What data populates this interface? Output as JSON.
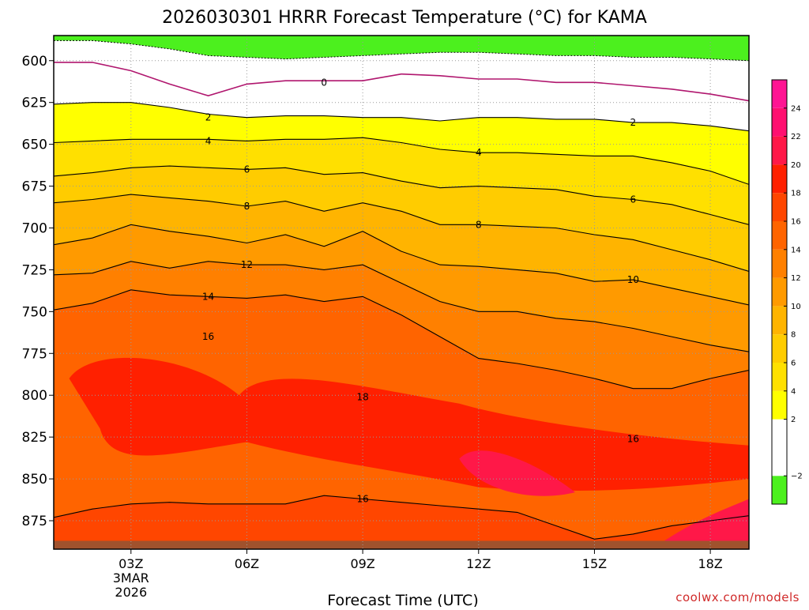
{
  "chart_data": {
    "type": "heatmap",
    "title": "2026030301 HRRR Forecast Temperature (°C) for KAMA",
    "xlabel": "Forecast Time (UTC)",
    "ylabel": "",
    "x_hours": [
      1,
      2,
      3,
      4,
      5,
      6,
      7,
      8,
      9,
      10,
      11,
      12,
      13,
      14,
      15,
      16,
      17,
      18,
      19
    ],
    "x_range": [
      1,
      19
    ],
    "y_range": [
      585,
      892
    ],
    "y_scale": "pressure (top 585, surface at bottom)",
    "y_ticks": [
      600,
      625,
      650,
      675,
      700,
      725,
      750,
      775,
      800,
      825,
      850,
      875
    ],
    "x_ticks": [
      {
        "hour": 3,
        "label": "03Z",
        "sub1": "3MAR",
        "sub2": "2026"
      },
      {
        "hour": 6,
        "label": "06Z"
      },
      {
        "hour": 9,
        "label": "09Z"
      },
      {
        "hour": 12,
        "label": "12Z"
      },
      {
        "hour": 15,
        "label": "15Z"
      },
      {
        "hour": 18,
        "label": "18Z"
      }
    ],
    "grid": "dotted",
    "surface_pressure": 887,
    "isotherms": [
      {
        "temp": 0,
        "color": "#b0166e",
        "p": [
          601,
          601,
          606,
          614,
          621,
          614,
          612,
          612,
          612,
          608,
          609,
          611,
          611,
          613,
          613,
          615,
          617,
          620,
          624
        ]
      },
      {
        "temp": 2,
        "color": "#000000",
        "p": [
          626,
          625,
          625,
          628,
          632,
          634,
          633,
          633,
          634,
          634,
          636,
          634,
          634,
          635,
          635,
          637,
          637,
          639,
          642
        ]
      },
      {
        "temp": 4,
        "color": "#000000",
        "p": [
          649,
          648,
          647,
          647,
          647,
          648,
          647,
          647,
          646,
          649,
          653,
          655,
          655,
          656,
          657,
          657,
          661,
          666,
          674
        ]
      },
      {
        "temp": 6,
        "color": "#000000",
        "p": [
          669,
          667,
          664,
          663,
          664,
          665,
          664,
          668,
          667,
          672,
          676,
          675,
          676,
          677,
          681,
          683,
          686,
          692,
          698
        ]
      },
      {
        "temp": 8,
        "color": "#000000",
        "p": [
          685,
          683,
          680,
          682,
          684,
          687,
          684,
          690,
          685,
          690,
          698,
          698,
          699,
          700,
          704,
          707,
          713,
          719,
          726
        ]
      },
      {
        "temp": 10,
        "color": "#000000",
        "p": [
          710,
          706,
          698,
          702,
          705,
          709,
          704,
          711,
          702,
          714,
          722,
          723,
          725,
          727,
          732,
          731,
          736,
          741,
          746
        ]
      },
      {
        "temp": 12,
        "color": "#000000",
        "p": [
          728,
          727,
          720,
          724,
          720,
          722,
          722,
          725,
          722,
          733,
          744,
          750,
          750,
          754,
          756,
          760,
          765,
          770,
          774
        ]
      },
      {
        "temp": 14,
        "color": "#000000",
        "p": [
          749,
          745,
          737,
          740,
          741,
          742,
          740,
          744,
          741,
          752,
          765,
          778,
          781,
          785,
          790,
          796,
          796,
          790,
          785
        ]
      },
      {
        "temp": 16,
        "color": "#000000",
        "p": [
          873,
          868,
          865,
          864,
          865,
          865,
          865,
          860,
          862,
          864,
          866,
          868,
          870,
          878,
          886,
          883,
          878,
          875,
          872
        ]
      }
    ],
    "colorbar": {
      "ticks": [
        -2,
        2,
        4,
        6,
        8,
        10,
        12,
        14,
        16,
        18,
        20,
        22,
        24
      ],
      "tick_labels": [
        "−2",
        "2",
        "4",
        "6",
        "8",
        "10",
        "12",
        "14",
        "16",
        "18",
        "20",
        "22",
        "24"
      ],
      "bins": [
        {
          "lo": -4,
          "hi": -2,
          "color": "#4cf01e"
        },
        {
          "lo": -2,
          "hi": 2,
          "color": "#ffffff"
        },
        {
          "lo": 2,
          "hi": 4,
          "color": "#ffff00"
        },
        {
          "lo": 4,
          "hi": 6,
          "color": "#ffe000"
        },
        {
          "lo": 6,
          "hi": 8,
          "color": "#ffcc00"
        },
        {
          "lo": 8,
          "hi": 10,
          "color": "#ffb400"
        },
        {
          "lo": 10,
          "hi": 12,
          "color": "#ff9a00"
        },
        {
          "lo": 12,
          "hi": 14,
          "color": "#ff8000"
        },
        {
          "lo": 14,
          "hi": 16,
          "color": "#ff6400"
        },
        {
          "lo": 16,
          "hi": 18,
          "color": "#ff4600"
        },
        {
          "lo": 18,
          "hi": 20,
          "color": "#ff2000"
        },
        {
          "lo": 20,
          "hi": 22,
          "color": "#ff1848"
        },
        {
          "lo": 22,
          "hi": 24,
          "color": "#ff1070"
        },
        {
          "lo": 24,
          "hi": 26,
          "color": "#ff1493"
        }
      ]
    },
    "contour_labels": [
      {
        "text": "0",
        "hour": 8,
        "p": 613
      },
      {
        "text": "2",
        "hour": 5,
        "p": 634
      },
      {
        "text": "2",
        "hour": 16,
        "p": 637
      },
      {
        "text": "4",
        "hour": 5,
        "p": 648
      },
      {
        "text": "4",
        "hour": 12,
        "p": 655
      },
      {
        "text": "6",
        "hour": 6,
        "p": 665
      },
      {
        "text": "6",
        "hour": 16,
        "p": 683
      },
      {
        "text": "8",
        "hour": 6,
        "p": 687
      },
      {
        "text": "8",
        "hour": 12,
        "p": 698
      },
      {
        "text": "12",
        "hour": 6,
        "p": 722
      },
      {
        "text": "10",
        "hour": 16,
        "p": 731
      },
      {
        "text": "14",
        "hour": 5,
        "p": 741
      },
      {
        "text": "16",
        "hour": 5,
        "p": 765
      },
      {
        "text": "18",
        "hour": 9,
        "p": 801
      },
      {
        "text": "16",
        "hour": 16,
        "p": 826
      },
      {
        "text": "16",
        "hour": 9,
        "p": 862
      }
    ]
  },
  "credit": "coolwx.com/models",
  "colors": {
    "below_freezing": "#4cf01e",
    "ground": "#a0522d",
    "isotherm_zero": "#b0166e",
    "credit": "#d02a2a"
  }
}
